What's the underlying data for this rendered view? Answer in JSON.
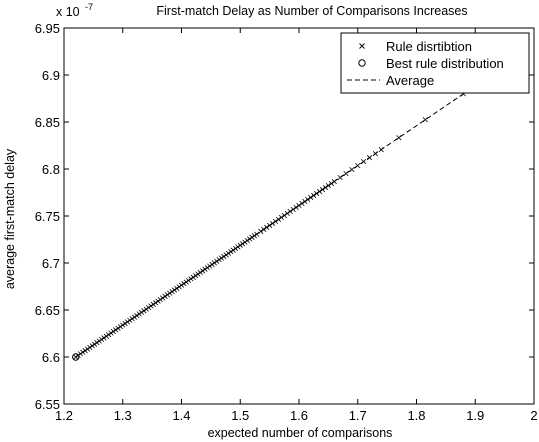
{
  "chart_data": {
    "type": "scatter",
    "title": "First-match Delay as Number of Comparisons Increases",
    "xlabel": "expected number of comparisons",
    "ylabel": "average first-match delay",
    "y_exponent_label": "x 10",
    "y_exponent_power": "-7",
    "xlim": [
      1.2,
      2.0
    ],
    "ylim": [
      6.55,
      6.95
    ],
    "x_ticks": [
      "1.2",
      "1.3",
      "1.4",
      "1.5",
      "1.6",
      "1.7",
      "1.8",
      "1.9",
      "2"
    ],
    "y_ticks": [
      "6.55",
      "6.6",
      "6.65",
      "6.7",
      "6.75",
      "6.8",
      "6.85",
      "6.9",
      "6.95"
    ],
    "grid": false,
    "legend_position": "top-right",
    "series": [
      {
        "name": "Rule disrtibtion",
        "marker": "x",
        "dense_band": {
          "x": [
            1.22,
            1.53
          ],
          "step": 0.004
        },
        "sparse_x": [
          1.535,
          1.54,
          1.545,
          1.55,
          1.555,
          1.56,
          1.565,
          1.57,
          1.575,
          1.58,
          1.585,
          1.59,
          1.595,
          1.6,
          1.605,
          1.61,
          1.615,
          1.62,
          1.625,
          1.63,
          1.635,
          1.64,
          1.645,
          1.65,
          1.655,
          1.66,
          1.67,
          1.68,
          1.69,
          1.7,
          1.71,
          1.72,
          1.73,
          1.74,
          1.77,
          1.815,
          1.88
        ],
        "line_fit": {
          "x0": 1.22,
          "y0": 6.6,
          "x1": 1.88,
          "y1": 6.88
        }
      },
      {
        "name": "Best rule distribution",
        "marker": "o",
        "x": [
          1.22
        ],
        "y": [
          6.6
        ]
      },
      {
        "name": "Average",
        "style": "dashed",
        "x": [
          1.22,
          1.88
        ],
        "y": [
          6.6,
          6.88
        ]
      }
    ]
  }
}
